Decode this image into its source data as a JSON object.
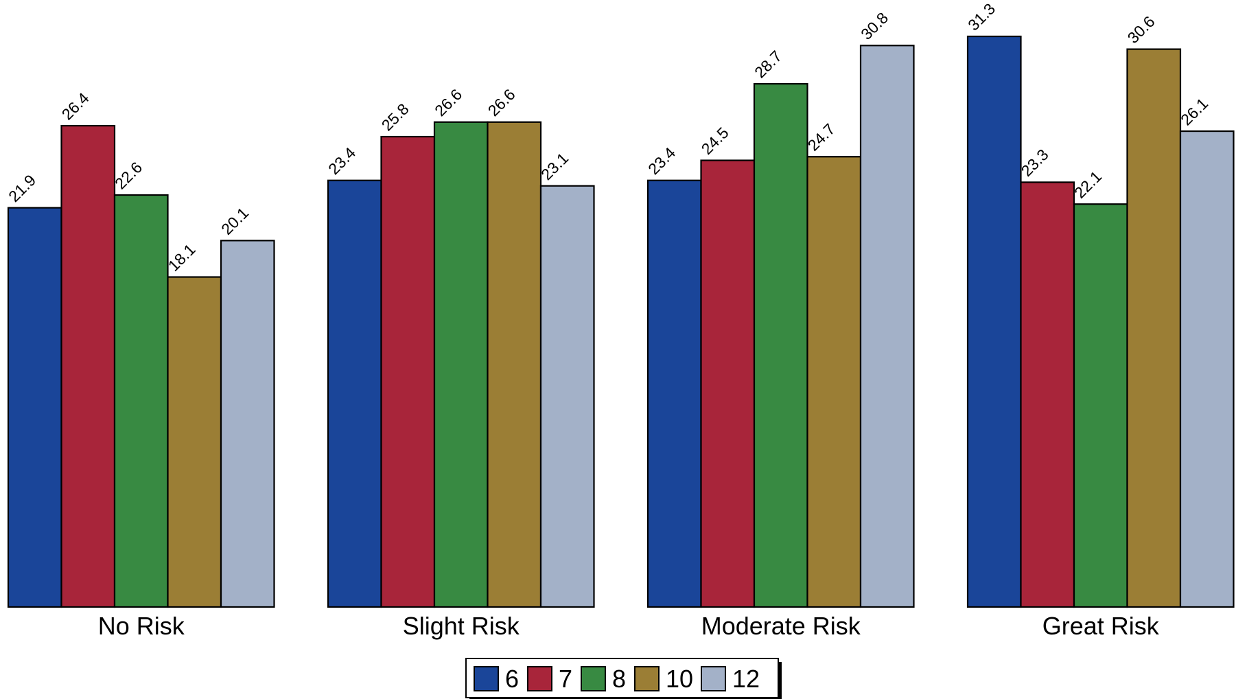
{
  "chart_data": {
    "type": "bar",
    "categories": [
      "No Risk",
      "Slight Risk",
      "Moderate Risk",
      "Great Risk"
    ],
    "series": [
      {
        "name": "6",
        "color": "#1a4599",
        "values": [
          21.9,
          23.4,
          23.4,
          31.3
        ]
      },
      {
        "name": "7",
        "color": "#a8253a",
        "values": [
          26.4,
          25.8,
          24.5,
          23.3
        ]
      },
      {
        "name": "8",
        "color": "#388a42",
        "values": [
          22.6,
          26.6,
          28.7,
          22.1
        ]
      },
      {
        "name": "10",
        "color": "#9b7e35",
        "values": [
          18.1,
          26.6,
          24.7,
          30.6
        ]
      },
      {
        "name": "12",
        "color": "#a3b1c8",
        "values": [
          20.1,
          23.1,
          30.8,
          26.1
        ]
      }
    ],
    "data_labels": [
      [
        "21.9",
        "26.4",
        "22.6",
        "18.1",
        "20.1"
      ],
      [
        "23.4",
        "25.8",
        "26.6",
        "26.6",
        "23.1"
      ],
      [
        "23.4",
        "24.5",
        "28.7",
        "24.7",
        "30.8"
      ],
      [
        "31.3",
        "23.3",
        "22.1",
        "30.6",
        "26.1"
      ]
    ],
    "title": "",
    "xlabel": "",
    "ylabel": "",
    "ylim": [
      0,
      31.3
    ],
    "grid": false,
    "legend_position": "bottom-center"
  }
}
